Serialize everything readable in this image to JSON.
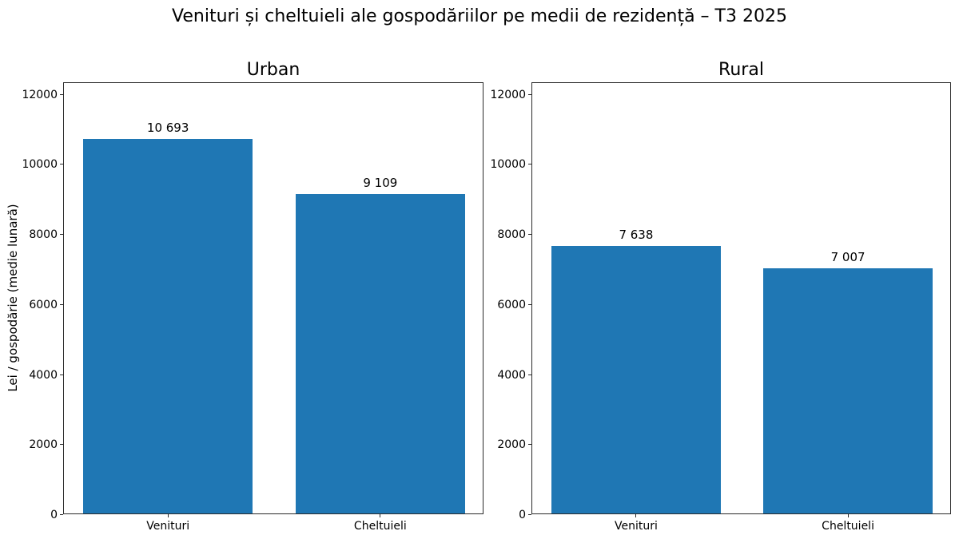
{
  "figure": {
    "suptitle": "Venituri și cheltuieli ale gospodăriilor pe medii de rezidență – T3 2025",
    "ylabel": "Lei / gospodărie (medie lunară)",
    "background_color": "#ffffff",
    "text_color": "#000000"
  },
  "chart_data": [
    {
      "type": "bar",
      "title": "Urban",
      "categories": [
        "Venituri",
        "Cheltuieli"
      ],
      "values": [
        10693,
        9109
      ],
      "value_labels": [
        "10 693",
        "9 109"
      ],
      "xlabel": "",
      "ylabel": "Lei / gospodărie (medie lunară)",
      "ylim": [
        0,
        12333
      ],
      "yticks": [
        0,
        2000,
        4000,
        6000,
        8000,
        10000,
        12000
      ],
      "bar_color": "#1f77b4",
      "grid": false,
      "legend": null
    },
    {
      "type": "bar",
      "title": "Rural",
      "categories": [
        "Venituri",
        "Cheltuieli"
      ],
      "values": [
        7638,
        7007
      ],
      "value_labels": [
        "7 638",
        "7 007"
      ],
      "xlabel": "",
      "ylabel": "",
      "ylim": [
        0,
        12333
      ],
      "yticks": [
        0,
        2000,
        4000,
        6000,
        8000,
        10000,
        12000
      ],
      "bar_color": "#1f77b4",
      "grid": false,
      "legend": null
    }
  ]
}
